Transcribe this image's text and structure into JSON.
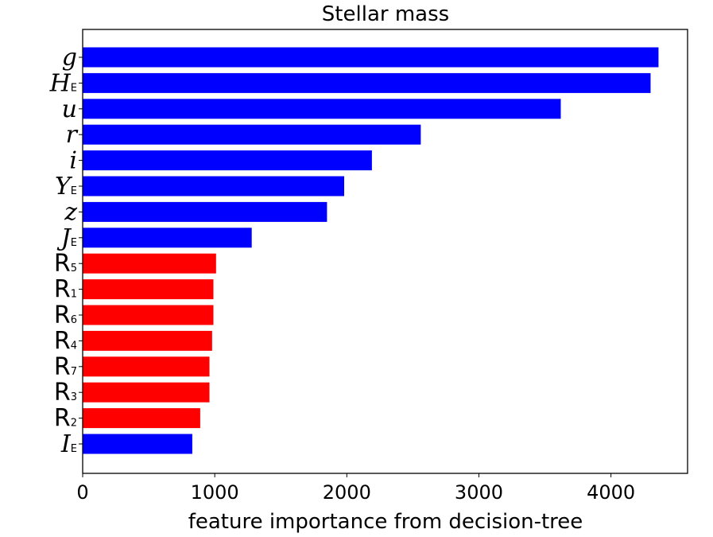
{
  "chart_data": {
    "type": "bar",
    "orientation": "horizontal",
    "title": "Stellar mass",
    "xlabel": "feature importance from decision-tree",
    "ylabel": "",
    "xlim": [
      0,
      4580
    ],
    "xticks": [
      0,
      1000,
      2000,
      3000,
      4000
    ],
    "xtick_labels": [
      "0",
      "1000",
      "2000",
      "3000",
      "4000"
    ],
    "grid": false,
    "colors": {
      "blue": "#0000ff",
      "red": "#ff0000"
    },
    "bars": [
      {
        "base": "g",
        "sub": "",
        "style": "italic",
        "value": 4360,
        "color": "#0000ff"
      },
      {
        "base": "H",
        "sub": "E",
        "style": "italic",
        "value": 4300,
        "color": "#0000ff"
      },
      {
        "base": "u",
        "sub": "",
        "style": "italic",
        "value": 3620,
        "color": "#0000ff"
      },
      {
        "base": "r",
        "sub": "",
        "style": "italic",
        "value": 2560,
        "color": "#0000ff"
      },
      {
        "base": "i",
        "sub": "",
        "style": "italic",
        "value": 2190,
        "color": "#0000ff"
      },
      {
        "base": "Y",
        "sub": "E",
        "style": "italic",
        "value": 1980,
        "color": "#0000ff"
      },
      {
        "base": "z",
        "sub": "",
        "style": "italic",
        "value": 1850,
        "color": "#0000ff"
      },
      {
        "base": "J",
        "sub": "E",
        "style": "italic",
        "value": 1280,
        "color": "#0000ff"
      },
      {
        "base": "R",
        "sub": "5",
        "style": "roman",
        "value": 1010,
        "color": "#ff0000"
      },
      {
        "base": "R",
        "sub": "1",
        "style": "roman",
        "value": 990,
        "color": "#ff0000"
      },
      {
        "base": "R",
        "sub": "6",
        "style": "roman",
        "value": 990,
        "color": "#ff0000"
      },
      {
        "base": "R",
        "sub": "4",
        "style": "roman",
        "value": 980,
        "color": "#ff0000"
      },
      {
        "base": "R",
        "sub": "7",
        "style": "roman",
        "value": 960,
        "color": "#ff0000"
      },
      {
        "base": "R",
        "sub": "3",
        "style": "roman",
        "value": 960,
        "color": "#ff0000"
      },
      {
        "base": "R",
        "sub": "2",
        "style": "roman",
        "value": 890,
        "color": "#ff0000"
      },
      {
        "base": "I",
        "sub": "E",
        "style": "italic",
        "value": 830,
        "color": "#0000ff"
      }
    ]
  }
}
